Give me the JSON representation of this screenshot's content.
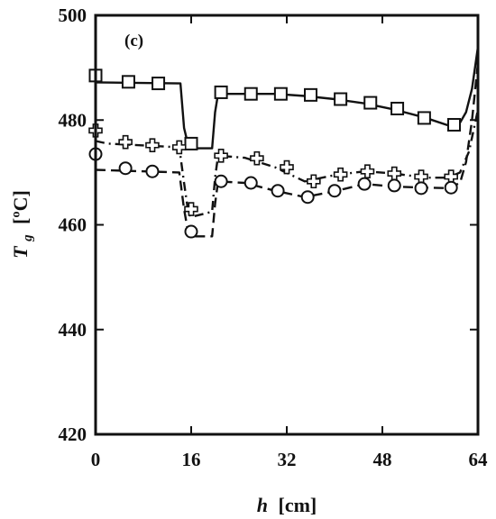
{
  "chart_data": {
    "type": "line",
    "panel_label": "(c)",
    "xlabel_var": "h",
    "xlabel_unit": "[cm]",
    "ylabel_var": "T",
    "ylabel_sub": "g",
    "ylabel_unit": "[ºC]",
    "xlim": [
      0,
      64
    ],
    "ylim": [
      420,
      500
    ],
    "xticks": [
      0,
      16,
      32,
      48,
      64
    ],
    "yticks": [
      420,
      440,
      460,
      480,
      500
    ],
    "grid": false,
    "series": [
      {
        "style": "solid",
        "marker": "square",
        "line": {
          "x": [
            0,
            14.2,
            14.8,
            15.5,
            16,
            19.5,
            20,
            20.5,
            25,
            30,
            35,
            40,
            45,
            50,
            55,
            59,
            61,
            62,
            63,
            64
          ],
          "y": [
            487.2,
            487.0,
            478.5,
            475.2,
            474.6,
            474.6,
            481.5,
            485.0,
            485.0,
            485.0,
            484.6,
            484.0,
            483.2,
            482.0,
            480.5,
            479.0,
            479.5,
            481.5,
            486.0,
            494.0
          ]
        },
        "markers": {
          "x": [
            0,
            5.5,
            10.5,
            16,
            21,
            26,
            31,
            36,
            41,
            46,
            50.5,
            55,
            60
          ],
          "y": [
            488.5,
            487.3,
            487.0,
            475.5,
            485.3,
            485.0,
            485.0,
            484.8,
            484.0,
            483.3,
            482.2,
            480.4,
            479.1
          ]
        }
      },
      {
        "style": "dash-dot",
        "marker": "cross",
        "line": {
          "x": [
            0,
            2,
            14,
            14.8,
            15.5,
            16,
            19.5,
            20,
            20.5,
            25,
            30,
            35,
            40,
            45,
            50,
            55,
            59,
            61,
            62.5,
            64
          ],
          "y": [
            476.0,
            475.5,
            474.8,
            468.0,
            462.5,
            461.5,
            462.5,
            469.0,
            473.2,
            472.8,
            471.0,
            468.3,
            469.5,
            470.2,
            469.8,
            469.0,
            469.0,
            470.0,
            474.0,
            482.0
          ]
        },
        "markers": {
          "x": [
            0,
            5,
            9.5,
            14,
            16,
            21,
            27,
            32,
            36.5,
            41,
            45.5,
            50,
            54.5,
            59.5
          ],
          "y": [
            478.0,
            475.8,
            475.2,
            474.8,
            463.0,
            473.2,
            472.7,
            471.0,
            468.3,
            469.6,
            470.2,
            469.8,
            469.2,
            469.2
          ]
        }
      },
      {
        "style": "dashed",
        "marker": "circle",
        "line": {
          "x": [
            0,
            14,
            14.8,
            15.5,
            16,
            19.5,
            20,
            20.5,
            25,
            30,
            35,
            40,
            45,
            50,
            55,
            59,
            61,
            62,
            63,
            64
          ],
          "y": [
            470.5,
            470.0,
            463.0,
            458.5,
            457.8,
            457.8,
            464.0,
            468.3,
            468.0,
            466.5,
            465.3,
            466.4,
            467.8,
            467.3,
            467.1,
            467.0,
            468.0,
            472.0,
            480.0,
            491.0
          ]
        },
        "markers": {
          "x": [
            0,
            5,
            9.5,
            16,
            21,
            26,
            30.5,
            35.5,
            40,
            45,
            50,
            54.5,
            59.5
          ],
          "y": [
            473.5,
            470.8,
            470.2,
            458.7,
            468.3,
            468.0,
            466.5,
            465.3,
            466.5,
            467.8,
            467.5,
            467.0,
            467.1
          ]
        }
      }
    ]
  }
}
